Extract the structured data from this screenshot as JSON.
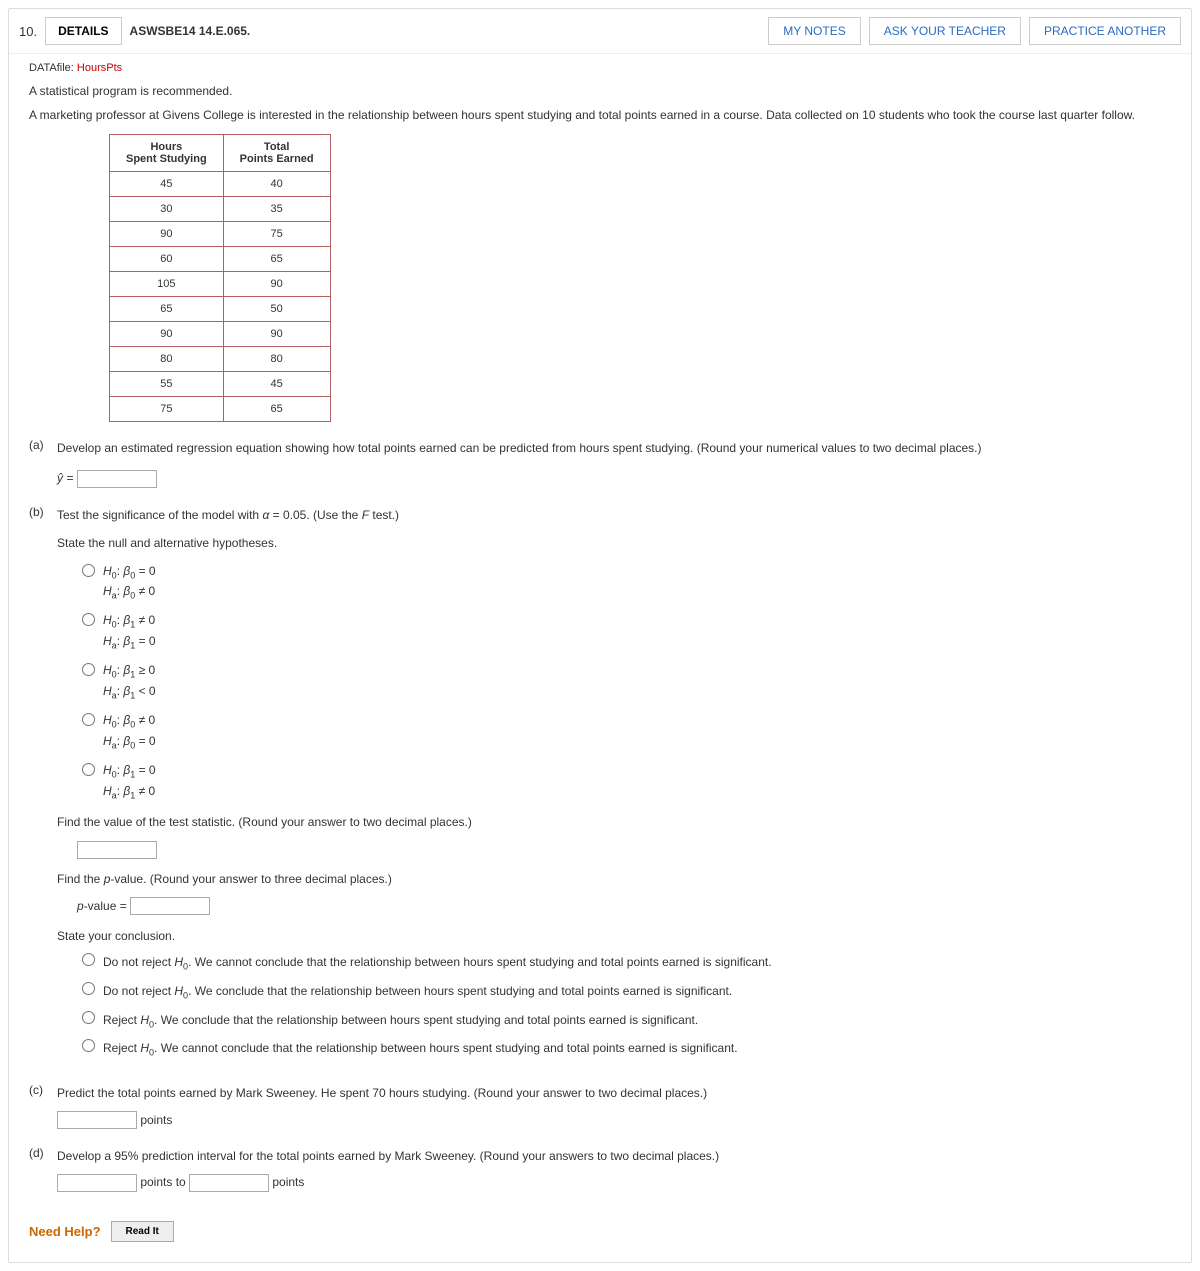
{
  "question_number": "10.",
  "details_label": "DETAILS",
  "question_code": "ASWSBE14 14.E.065.",
  "buttons": {
    "my_notes": "MY NOTES",
    "ask_teacher": "ASK YOUR TEACHER",
    "practice_another": "PRACTICE ANOTHER"
  },
  "datafile": {
    "prefix": "DATAfile: ",
    "name": "HoursPts"
  },
  "intro1": "A statistical program is recommended.",
  "intro2": "A marketing professor at Givens College is interested in the relationship between hours spent studying and total points earned in a course. Data collected on 10 students who took the course last quarter follow.",
  "table": {
    "col1": "Hours\nSpent Studying",
    "col2": "Total\nPoints Earned",
    "rows": [
      [
        "45",
        "40"
      ],
      [
        "30",
        "35"
      ],
      [
        "90",
        "75"
      ],
      [
        "60",
        "65"
      ],
      [
        "105",
        "90"
      ],
      [
        "65",
        "50"
      ],
      [
        "90",
        "90"
      ],
      [
        "80",
        "80"
      ],
      [
        "55",
        "45"
      ],
      [
        "75",
        "65"
      ]
    ]
  },
  "part_a_label": "(a)",
  "part_a_text": "Develop an estimated regression equation showing how total points earned can be predicted from hours spent studying. (Round your numerical values to two decimal places.)",
  "yhat_prefix": "ŷ = ",
  "part_b_label": "(b)",
  "part_b_text": "Test the significance of the model with α = 0.05. (Use the F test.)",
  "state_hyp": "State the null and alternative hypotheses.",
  "hyp": {
    "o1": {
      "h0": "H₀: β₀ = 0",
      "ha": "Hₐ: β₀ ≠ 0"
    },
    "o2": {
      "h0": "H₀: β₁ ≠ 0",
      "ha": "Hₐ: β₁ = 0"
    },
    "o3": {
      "h0": "H₀: β₁ ≥ 0",
      "ha": "Hₐ: β₁ < 0"
    },
    "o4": {
      "h0": "H₀: β₀ ≠ 0",
      "ha": "Hₐ: β₀ = 0"
    },
    "o5": {
      "h0": "H₀: β₁ = 0",
      "ha": "Hₐ: β₁ ≠ 0"
    }
  },
  "find_test": "Find the value of the test statistic. (Round your answer to two decimal places.)",
  "find_pvalue": "Find the p-value. (Round your answer to three decimal places.)",
  "pvalue_prefix": "p-value = ",
  "state_conclusion": "State your conclusion.",
  "conclusions": {
    "c1": "Do not reject H₀. We cannot conclude that the relationship between hours spent studying and total points earned is significant.",
    "c2": "Do not reject H₀. We conclude that the relationship between hours spent studying and total points earned is significant.",
    "c3": "Reject H₀. We conclude that the relationship between hours spent studying and total points earned is significant.",
    "c4": "Reject H₀. We cannot conclude that the relationship between hours spent studying and total points earned is significant."
  },
  "part_c_label": "(c)",
  "part_c_text": "Predict the total points earned by Mark Sweeney. He spent 70 hours studying. (Round your answer to two decimal places.)",
  "points_label": " points",
  "part_d_label": "(d)",
  "part_d_text": "Develop a 95% prediction interval for the total points earned by Mark Sweeney. (Round your answers to two decimal places.)",
  "points_to": " points to ",
  "points_end": " points",
  "need_help": "Need Help?",
  "read_it": "Read It",
  "colors": {
    "link_red": "#cc0000",
    "link_blue": "#2a6bc4",
    "table_border": "#b06060",
    "need_help": "#cc6600"
  }
}
